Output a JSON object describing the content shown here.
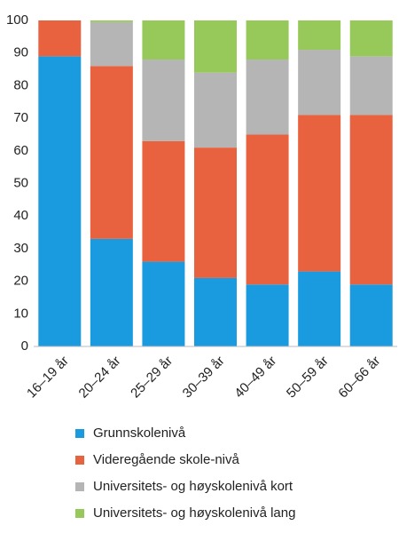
{
  "chart_data": {
    "type": "stacked-bar",
    "categories": [
      "16–19 år",
      "20–24 år",
      "25–29 år",
      "30–39 år",
      "40–49 år",
      "50–59 år",
      "60–66 år"
    ],
    "series": [
      {
        "name": "Grunnskolenivå",
        "color": "#1a9be0",
        "values": [
          89,
          33,
          26,
          21,
          19,
          23,
          19
        ]
      },
      {
        "name": "Videregående skole-nivå",
        "color": "#e9623f",
        "values": [
          11,
          53,
          37,
          40,
          46,
          48,
          52
        ]
      },
      {
        "name": "Universitets- og høyskolenivå kort",
        "color": "#b5b5b5",
        "values": [
          0,
          13.5,
          25,
          23,
          23,
          20,
          18
        ]
      },
      {
        "name": "Universitets- og høyskolenivå lang",
        "color": "#97c95a",
        "values": [
          0,
          0.5,
          12,
          16,
          12,
          9,
          11
        ]
      }
    ],
    "ylim": [
      0,
      100
    ],
    "yticks": [
      0,
      10,
      20,
      30,
      40,
      50,
      60,
      70,
      80,
      90,
      100
    ],
    "grid": false
  }
}
